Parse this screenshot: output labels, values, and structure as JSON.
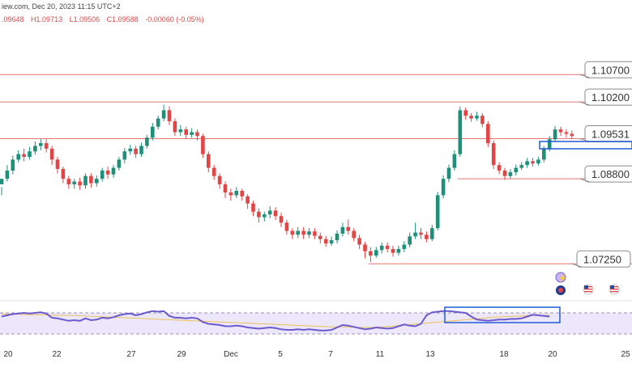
{
  "header": {
    "source_line": "iew.com, Dec 20, 2023 11:15 UTC+2",
    "ohlc": {
      "open": ".09648",
      "high": "H1.09713",
      "low": "L1.09506",
      "close": "C1.09588",
      "change": "-0.00060 (-0.05%)"
    }
  },
  "colors": {
    "bull": "#1f8f7a",
    "bear": "#e04646",
    "level_line": "#e57373",
    "rsi_line": "#6a5acd",
    "rsi_ma": "#e8c15a",
    "rsi_band": "#ede7fb",
    "highlight_box": "#1e5bd6"
  },
  "chart_data": {
    "type": "candlestick",
    "x_ticks": [
      "20",
      "22",
      "27",
      "29",
      "Dec",
      "5",
      "7",
      "11",
      "13",
      "18",
      "20",
      "25"
    ],
    "price_levels": [
      "1.10700",
      "1.10200",
      "1.09531",
      "1.08800",
      "1.07250"
    ],
    "price_range": [
      1.069,
      1.115
    ],
    "candles": [
      [
        1.087,
        1.088,
        1.0865,
        1.085
      ],
      [
        1.088,
        1.0895,
        1.0905,
        1.0875
      ],
      [
        1.0895,
        1.0915,
        1.0922,
        1.0888
      ],
      [
        1.0915,
        1.0925,
        1.0932,
        1.091
      ],
      [
        1.0925,
        1.092,
        1.0935,
        1.0912
      ],
      [
        1.092,
        1.093,
        1.0938,
        1.0915
      ],
      [
        1.093,
        1.094,
        1.0948,
        1.0924
      ],
      [
        1.094,
        1.0945,
        1.0952,
        1.0932
      ],
      [
        1.0945,
        1.0935,
        1.0952,
        1.0928
      ],
      [
        1.0935,
        1.0915,
        1.094,
        1.0905
      ],
      [
        1.0915,
        1.0898,
        1.092,
        1.089
      ],
      [
        1.0898,
        1.088,
        1.0902,
        1.0872
      ],
      [
        1.088,
        1.087,
        1.0885,
        1.0862
      ],
      [
        1.087,
        1.0875,
        1.088,
        1.0862
      ],
      [
        1.0875,
        1.0868,
        1.0882,
        1.086
      ],
      [
        1.0868,
        1.0885,
        1.089,
        1.0862
      ],
      [
        1.0885,
        1.0872,
        1.089,
        1.0864
      ],
      [
        1.0872,
        1.088,
        1.0886,
        1.0866
      ],
      [
        1.088,
        1.0895,
        1.09,
        1.0875
      ],
      [
        1.0895,
        1.0888,
        1.0902,
        1.088
      ],
      [
        1.0888,
        1.09,
        1.0905,
        1.0882
      ],
      [
        1.09,
        1.0915,
        1.092,
        1.0895
      ],
      [
        1.0915,
        1.093,
        1.0936,
        1.0908
      ],
      [
        1.093,
        1.0935,
        1.0942,
        1.0924
      ],
      [
        1.0935,
        1.0925,
        1.094,
        1.0918
      ],
      [
        1.0925,
        1.094,
        1.0946,
        1.092
      ],
      [
        1.094,
        1.0955,
        1.096,
        1.0935
      ],
      [
        1.0955,
        1.0975,
        1.0982,
        1.095
      ],
      [
        1.0975,
        1.099,
        1.0995,
        1.097
      ],
      [
        1.099,
        1.1005,
        1.1015,
        1.0985
      ],
      [
        1.1005,
        1.0985,
        1.1012,
        1.0978
      ],
      [
        1.0985,
        1.0965,
        1.099,
        1.0958
      ],
      [
        1.0965,
        1.097,
        1.0978,
        1.0958
      ],
      [
        1.097,
        1.096,
        1.0975,
        1.0952
      ],
      [
        1.096,
        1.0965,
        1.0972,
        1.0955
      ],
      [
        1.0965,
        1.0958,
        1.097,
        1.095
      ],
      [
        1.0958,
        1.0925,
        1.0962,
        1.0918
      ],
      [
        1.0925,
        1.09,
        1.093,
        1.0892
      ],
      [
        1.09,
        1.0885,
        1.0905,
        1.0878
      ],
      [
        1.0885,
        1.087,
        1.089,
        1.0862
      ],
      [
        1.087,
        1.0855,
        1.0875,
        1.0845
      ],
      [
        1.0855,
        1.085,
        1.0862,
        1.084
      ],
      [
        1.085,
        1.0858,
        1.0865,
        1.0845
      ],
      [
        1.0858,
        1.0848,
        1.0862,
        1.084
      ],
      [
        1.0848,
        1.0835,
        1.0852,
        1.0825
      ],
      [
        1.0835,
        1.082,
        1.084,
        1.0812
      ],
      [
        1.082,
        1.081,
        1.0826,
        1.08
      ],
      [
        1.081,
        1.0815,
        1.082,
        1.0802
      ],
      [
        1.0815,
        1.0822,
        1.083,
        1.0808
      ],
      [
        1.0822,
        1.0812,
        1.0828,
        1.0805
      ],
      [
        1.0812,
        1.08,
        1.0818,
        1.0792
      ],
      [
        1.08,
        1.0785,
        1.0805,
        1.0778
      ],
      [
        1.0785,
        1.0778,
        1.079,
        1.077
      ],
      [
        1.0778,
        1.0785,
        1.0792,
        1.0772
      ],
      [
        1.0785,
        1.0778,
        1.0792,
        1.077
      ],
      [
        1.0778,
        1.0784,
        1.079,
        1.0772
      ],
      [
        1.0784,
        1.0776,
        1.079,
        1.077
      ],
      [
        1.0776,
        1.077,
        1.0782,
        1.0762
      ],
      [
        1.077,
        1.0762,
        1.0776,
        1.0756
      ],
      [
        1.0762,
        1.0768,
        1.0775,
        1.0758
      ],
      [
        1.0768,
        1.078,
        1.0786,
        1.0762
      ],
      [
        1.078,
        1.0792,
        1.08,
        1.0775
      ],
      [
        1.0792,
        1.0785,
        1.0806,
        1.0778
      ],
      [
        1.0785,
        1.0772,
        1.079,
        1.0766
      ],
      [
        1.0772,
        1.076,
        1.0778,
        1.0752
      ],
      [
        1.076,
        1.0748,
        1.0765,
        1.0735
      ],
      [
        1.0748,
        1.074,
        1.0755,
        1.0728
      ],
      [
        1.074,
        1.075,
        1.0756,
        1.0736
      ],
      [
        1.075,
        1.0758,
        1.0764,
        1.0744
      ],
      [
        1.0758,
        1.0752,
        1.0764,
        1.0746
      ],
      [
        1.0752,
        1.0745,
        1.0758,
        1.0738
      ],
      [
        1.0745,
        1.0752,
        1.0758,
        1.074
      ],
      [
        1.0752,
        1.076,
        1.0766,
        1.0746
      ],
      [
        1.076,
        1.0775,
        1.0782,
        1.0755
      ],
      [
        1.0775,
        1.0782,
        1.08,
        1.077
      ],
      [
        1.0782,
        1.0778,
        1.079,
        1.077
      ],
      [
        1.0778,
        1.077,
        1.0784,
        1.0764
      ],
      [
        1.077,
        1.079,
        1.0796,
        1.0766
      ],
      [
        1.079,
        1.085,
        1.0856,
        1.0786
      ],
      [
        1.085,
        1.088,
        1.0886,
        1.0844
      ],
      [
        1.088,
        1.09,
        1.0906,
        1.0874
      ],
      [
        1.09,
        1.0925,
        1.0932,
        1.0895
      ],
      [
        1.0925,
        1.1005,
        1.1012,
        1.092
      ],
      [
        1.1005,
        1.0995,
        1.101,
        1.0988
      ],
      [
        1.0995,
        1.099,
        1.1,
        1.0984
      ],
      [
        1.099,
        1.0995,
        1.1002,
        1.0986
      ],
      [
        1.0995,
        1.098,
        1.1,
        1.0974
      ],
      [
        1.098,
        1.0945,
        1.0985,
        1.0938
      ],
      [
        1.0945,
        1.0905,
        1.095,
        1.0898
      ],
      [
        1.0905,
        1.0895,
        1.091,
        1.0888
      ],
      [
        1.0895,
        1.0885,
        1.09,
        1.0878
      ],
      [
        1.0885,
        1.0892,
        1.0898,
        1.088
      ],
      [
        1.0892,
        1.09,
        1.0906,
        1.0886
      ],
      [
        1.09,
        1.0905,
        1.091,
        1.0896
      ],
      [
        1.0905,
        1.0912,
        1.0918,
        1.09
      ],
      [
        1.0912,
        1.0908,
        1.0918,
        1.0902
      ],
      [
        1.0908,
        1.0915,
        1.092,
        1.0904
      ],
      [
        1.0915,
        1.0935,
        1.094,
        1.091
      ],
      [
        1.0935,
        1.0952,
        1.0958,
        1.093
      ],
      [
        1.0952,
        1.097,
        1.0976,
        1.0948
      ],
      [
        1.097,
        1.0965,
        1.0975,
        1.0958
      ],
      [
        1.0965,
        1.0962,
        1.097,
        1.0955
      ],
      [
        1.0962,
        1.0958,
        1.0968,
        1.0952
      ]
    ],
    "rsi": [
      58,
      60,
      62,
      63,
      64,
      63,
      64,
      65,
      63,
      56,
      55,
      53,
      51,
      52,
      51,
      55,
      52,
      53,
      56,
      55,
      57,
      60,
      62,
      63,
      60,
      62,
      65,
      67,
      66,
      67,
      59,
      56,
      56,
      55,
      56,
      55,
      49,
      46,
      45,
      44,
      42,
      42,
      43,
      42,
      40,
      39,
      38,
      39,
      40,
      39,
      37,
      36,
      36,
      37,
      36,
      37,
      36,
      35,
      35,
      36,
      40,
      44,
      43,
      41,
      39,
      37,
      38,
      40,
      39,
      38,
      39,
      42,
      45,
      43,
      42,
      46,
      60,
      65,
      66,
      67,
      67,
      66,
      65,
      64,
      58,
      53,
      52,
      51,
      52,
      53,
      53,
      54,
      54,
      55,
      58,
      61,
      60,
      59,
      58
    ],
    "rsi_ma": [
      62,
      62,
      61,
      61,
      60,
      60,
      59,
      58,
      57,
      56,
      55,
      54,
      53,
      52,
      51,
      50,
      49,
      48,
      47,
      46,
      45,
      44,
      43,
      42,
      41,
      41,
      40,
      40,
      41,
      43,
      45,
      47,
      49,
      51,
      53,
      55,
      57,
      58,
      59,
      60,
      60
    ],
    "rsi_range": [
      20,
      80
    ],
    "rsi_guides": [
      70,
      30
    ],
    "indicator_icons": [
      "lightning-icon",
      "target-icon",
      "us-flag-icon",
      "us-flag-icon",
      "us-flag-icon"
    ]
  }
}
